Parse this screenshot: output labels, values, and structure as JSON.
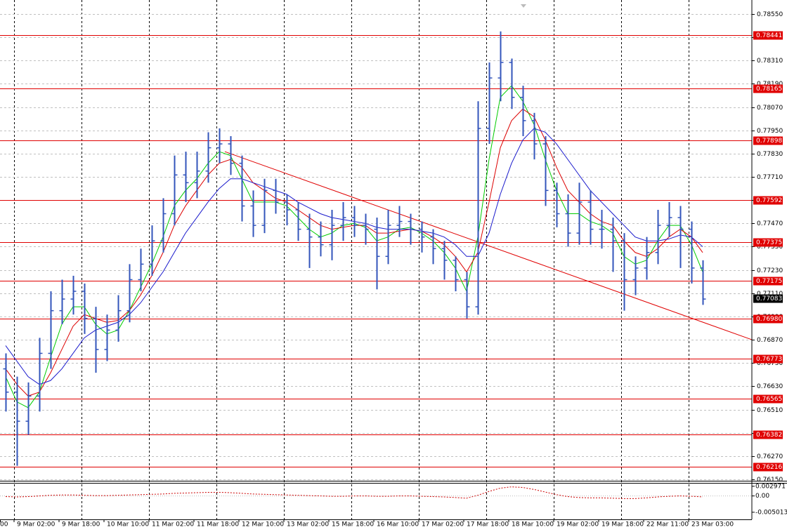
{
  "chart_data": {
    "type": "ohlc",
    "categories": [
      "00",
      null,
      null,
      null,
      "9 Mar 02:00",
      null,
      null,
      null,
      "9 Mar 18:00",
      null,
      null,
      null,
      "10 Mar 10:00",
      null,
      null,
      null,
      "11 Mar 02:00",
      null,
      null,
      null,
      "11 Mar 18:00",
      null,
      null,
      null,
      "12 Mar 10:00",
      null,
      null,
      null,
      "13 Mar 02:00",
      null,
      null,
      null,
      "15 Mar 18:00",
      null,
      null,
      null,
      "16 Mar 10:00",
      null,
      null,
      null,
      "17 Mar 02:00",
      null,
      null,
      null,
      "17 Mar 18:00",
      null,
      null,
      null,
      "18 Mar 10:00",
      null,
      null,
      null,
      "19 Mar 02:00",
      null,
      null,
      null,
      "19 Mar 18:00",
      null,
      null,
      null,
      "22 Mar 11:00",
      null,
      null,
      null,
      "23 Mar 03:00",
      null
    ],
    "color": "#3355bb",
    "open": [
      null,
      null,
      null,
      0.7672,
      0.766,
      0.7645,
      0.7658,
      0.768,
      0.7702,
      0.7708,
      0.7712,
      0.7698,
      0.7682,
      0.7692,
      0.7702,
      0.7718,
      0.7726,
      0.7738,
      0.7752,
      0.7772,
      0.7768,
      0.7774,
      0.7786,
      0.7788,
      0.7778,
      0.7756,
      0.7746,
      0.7764,
      0.7758,
      0.7754,
      0.7744,
      0.774,
      0.7736,
      0.7746,
      0.775,
      0.7746,
      0.7744,
      0.773,
      0.7746,
      0.7748,
      0.7744,
      0.774,
      0.7734,
      0.7728,
      0.7718,
      0.7704,
      0.7796,
      0.7822,
      0.783,
      0.7812,
      0.78,
      0.7788,
      0.7764,
      0.7752,
      0.7742,
      0.7758,
      0.7744,
      0.7744,
      0.7738,
      0.7718,
      0.7724,
      0.7732,
      0.7746,
      0.775,
      0.7744,
      0.7724
    ],
    "high": [
      null,
      null,
      null,
      0.768,
      0.7668,
      0.7665,
      0.7688,
      0.7712,
      0.7718,
      0.772,
      0.7716,
      0.7704,
      0.77,
      0.771,
      0.7726,
      0.7734,
      0.7746,
      0.776,
      0.7782,
      0.7784,
      0.7784,
      0.7794,
      0.7796,
      0.7792,
      0.7782,
      0.7764,
      0.777,
      0.777,
      0.7762,
      0.7758,
      0.7752,
      0.7748,
      0.7754,
      0.7758,
      0.7756,
      0.7752,
      0.775,
      0.7754,
      0.7756,
      0.7752,
      0.7748,
      0.7744,
      0.7738,
      0.773,
      0.7722,
      0.781,
      0.783,
      0.7846,
      0.7832,
      0.7818,
      0.7804,
      0.7792,
      0.7768,
      0.7762,
      0.7768,
      0.7764,
      0.7754,
      0.775,
      0.7742,
      0.773,
      0.774,
      0.7754,
      0.7758,
      0.7756,
      0.7748,
      0.7728
    ],
    "low": [
      null,
      null,
      null,
      0.765,
      0.7622,
      0.7638,
      0.765,
      0.7672,
      0.7695,
      0.77,
      0.769,
      0.767,
      0.7676,
      0.7686,
      0.7696,
      0.7712,
      0.772,
      0.7732,
      0.7746,
      0.7758,
      0.776,
      0.7768,
      0.7778,
      0.7772,
      0.7748,
      0.774,
      0.7742,
      0.7752,
      0.7746,
      0.7738,
      0.7724,
      0.773,
      0.7728,
      0.7738,
      0.774,
      0.7736,
      0.7713,
      0.7726,
      0.774,
      0.7736,
      0.7732,
      0.7726,
      0.7718,
      0.7712,
      0.7698,
      0.77,
      0.7788,
      0.781,
      0.7806,
      0.7792,
      0.778,
      0.7756,
      0.7745,
      0.7735,
      0.7736,
      0.7736,
      0.7734,
      0.7722,
      0.7702,
      0.771,
      0.7718,
      0.7726,
      0.774,
      0.7724,
      0.7716,
      0.7705
    ],
    "close": [
      null,
      null,
      null,
      0.766,
      0.7645,
      0.7658,
      0.768,
      0.7702,
      0.7708,
      0.7712,
      0.7698,
      0.7682,
      0.7692,
      0.7702,
      0.7718,
      0.7726,
      0.7738,
      0.7752,
      0.7772,
      0.7768,
      0.7774,
      0.7786,
      0.7788,
      0.7778,
      0.7756,
      0.7746,
      0.7764,
      0.7758,
      0.7754,
      0.7744,
      0.774,
      0.7736,
      0.7746,
      0.775,
      0.7746,
      0.7744,
      0.773,
      0.7746,
      0.7748,
      0.7744,
      0.774,
      0.7734,
      0.7728,
      0.7718,
      0.7704,
      0.7796,
      0.7822,
      0.783,
      0.7812,
      0.78,
      0.7788,
      0.7764,
      0.7752,
      0.7742,
      0.7758,
      0.7744,
      0.7744,
      0.7738,
      0.7718,
      0.7724,
      0.7732,
      0.7746,
      0.775,
      0.7744,
      0.7724,
      0.7708
    ],
    "series": [
      {
        "color": "#00cc00",
        "values": [
          null,
          null,
          null,
          0.7668,
          0.7655,
          0.7652,
          0.766,
          0.7678,
          0.7695,
          0.7704,
          0.7704,
          0.7695,
          0.769,
          0.7692,
          0.7702,
          0.7714,
          0.7726,
          0.774,
          0.7756,
          0.7764,
          0.777,
          0.7778,
          0.7784,
          0.7782,
          0.777,
          0.7758,
          0.7758,
          0.7758,
          0.7756,
          0.775,
          0.7744,
          0.774,
          0.7742,
          0.7746,
          0.7747,
          0.7745,
          0.7738,
          0.774,
          0.7744,
          0.7745,
          0.7742,
          0.7738,
          0.7732,
          0.7724,
          0.7712,
          0.774,
          0.778,
          0.7812,
          0.7818,
          0.781,
          0.7798,
          0.778,
          0.7764,
          0.7752,
          0.7752,
          0.7748,
          0.7746,
          0.7742,
          0.773,
          0.7726,
          0.7728,
          0.7738,
          0.7746,
          0.7746,
          0.7736,
          0.7722
        ]
      },
      {
        "color": "#dd0000",
        "values": [
          null,
          null,
          null,
          0.7672,
          0.7664,
          0.7658,
          0.766,
          0.767,
          0.7682,
          0.7694,
          0.77,
          0.7698,
          0.7696,
          0.7697,
          0.7702,
          0.771,
          0.772,
          0.7732,
          0.7746,
          0.7756,
          0.7764,
          0.7772,
          0.7778,
          0.778,
          0.7776,
          0.7768,
          0.7764,
          0.776,
          0.7758,
          0.7754,
          0.775,
          0.7746,
          0.7744,
          0.7745,
          0.7746,
          0.7746,
          0.7742,
          0.7742,
          0.7743,
          0.7744,
          0.7743,
          0.774,
          0.7736,
          0.773,
          0.7722,
          0.7732,
          0.7758,
          0.7786,
          0.78,
          0.7806,
          0.7802,
          0.779,
          0.7776,
          0.7764,
          0.7758,
          0.7752,
          0.7748,
          0.7746,
          0.7738,
          0.7732,
          0.773,
          0.7734,
          0.774,
          0.7744,
          0.774,
          0.7732
        ]
      },
      {
        "color": "#1a1acc",
        "values": [
          null,
          null,
          null,
          0.7684,
          0.7676,
          0.7668,
          0.7664,
          0.7666,
          0.7672,
          0.768,
          0.7688,
          0.7692,
          0.7694,
          0.7696,
          0.77,
          0.7706,
          0.7714,
          0.7722,
          0.7732,
          0.7742,
          0.775,
          0.7758,
          0.7765,
          0.777,
          0.777,
          0.7768,
          0.7766,
          0.7764,
          0.7762,
          0.7758,
          0.7755,
          0.7752,
          0.775,
          0.7749,
          0.7748,
          0.7747,
          0.7745,
          0.7744,
          0.7744,
          0.7744,
          0.7743,
          0.7742,
          0.774,
          0.7736,
          0.773,
          0.773,
          0.7742,
          0.7762,
          0.7778,
          0.779,
          0.7796,
          0.7794,
          0.7788,
          0.778,
          0.7772,
          0.7764,
          0.7758,
          0.7752,
          0.7746,
          0.774,
          0.7738,
          0.7738,
          0.7739,
          0.7741,
          0.774,
          0.7735
        ]
      }
    ],
    "ylim": [
      0.76143,
      0.78622
    ],
    "yticks": [
      {
        "value": 0.7855,
        "label": "0.78550"
      },
      {
        "value": 0.7843,
        "label": "0.78430"
      },
      {
        "value": 0.7831,
        "label": "0.78310"
      },
      {
        "value": 0.7819,
        "label": "0.78190"
      },
      {
        "value": 0.7807,
        "label": "0.78070"
      },
      {
        "value": 0.7795,
        "label": "0.77950"
      },
      {
        "value": 0.7783,
        "label": "0.77830"
      },
      {
        "value": 0.7771,
        "label": "0.77710"
      },
      {
        "value": 0.7759,
        "label": "0.77590"
      },
      {
        "value": 0.7747,
        "label": "0.77470"
      },
      {
        "value": 0.7735,
        "label": "0.77350"
      },
      {
        "value": 0.7723,
        "label": "0.77230"
      },
      {
        "value": 0.7711,
        "label": "0.77110"
      },
      {
        "value": 0.7699,
        "label": "0.76990"
      },
      {
        "value": 0.7687,
        "label": "0.76870"
      },
      {
        "value": 0.7675,
        "label": "0.76750"
      },
      {
        "value": 0.7663,
        "label": "0.76630"
      },
      {
        "value": 0.7651,
        "label": "0.76510"
      },
      {
        "value": 0.7639,
        "label": "0.76390"
      },
      {
        "value": 0.7627,
        "label": "0.76270"
      },
      {
        "value": 0.7615,
        "label": "0.76150"
      }
    ],
    "grid": true,
    "levels": [
      {
        "value": 0.78441,
        "label": "0.78441"
      },
      {
        "value": 0.78165,
        "label": "0.78165"
      },
      {
        "value": 0.77898,
        "label": "0.77898"
      },
      {
        "value": 0.77592,
        "label": "0.77592"
      },
      {
        "value": 0.77375,
        "label": "0.77375"
      },
      {
        "value": 0.77175,
        "label": "0.77175"
      },
      {
        "value": 0.7698,
        "label": "0.76980"
      },
      {
        "value": 0.76773,
        "label": "0.76773"
      },
      {
        "value": 0.76565,
        "label": "0.76565"
      },
      {
        "value": 0.76382,
        "label": "0.76382"
      },
      {
        "value": 0.76216,
        "label": "0.76216"
      }
    ],
    "level_color": "#e00000",
    "current_price": {
      "value": 0.77083,
      "label": "0.77083"
    },
    "trendline": {
      "x": [
        22.5,
        69.4
      ],
      "y": [
        0.7784,
        0.7687
      ],
      "color": "#e00000"
    },
    "indicator": {
      "color": "#cc0000",
      "ylim": [
        -0.0072,
        0.0038
      ],
      "yticks": [
        {
          "value": 0.002971,
          "label": "0.002971"
        },
        {
          "value": 0,
          "label": "0.00"
        },
        {
          "value": -0.005013,
          "label": "-0.005013"
        }
      ],
      "values": [
        null,
        null,
        null,
        -0.0002,
        -0.0003,
        -0.0002,
        0,
        0.0002,
        0.0003,
        0.0003,
        0.0002,
        0.0001,
        0.0001,
        0.0002,
        0.0003,
        0.0004,
        0.0005,
        0.0006,
        0.0008,
        0.0009,
        0.001,
        0.0011,
        0.0011,
        0.001,
        0.0008,
        0.0006,
        0.0005,
        0.0004,
        0.0003,
        0.0002,
        0.0001,
        0,
        -0.0001,
        -0.0001,
        0,
        0,
        -0.0001,
        -0.0001,
        0,
        0,
        -0.0001,
        -0.0002,
        -0.0003,
        -0.0005,
        -0.0007,
        0.0002,
        0.0014,
        0.0024,
        0.0028,
        0.0026,
        0.002,
        0.0012,
        0.0004,
        -0.0002,
        -0.0005,
        -0.0006,
        -0.0006,
        -0.0007,
        -0.0008,
        -0.0008,
        -0.0006,
        -0.0003,
        -0.0001,
        0,
        -0.0001,
        -0.0003
      ]
    }
  }
}
